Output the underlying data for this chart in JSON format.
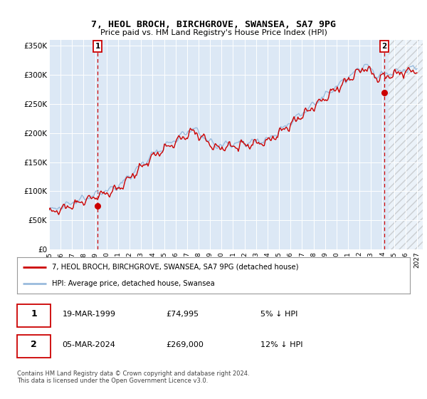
{
  "title": "7, HEOL BROCH, BIRCHGROVE, SWANSEA, SA7 9PG",
  "subtitle": "Price paid vs. HM Land Registry's House Price Index (HPI)",
  "legend_entry1": "7, HEOL BROCH, BIRCHGROVE, SWANSEA, SA7 9PG (detached house)",
  "legend_entry2": "HPI: Average price, detached house, Swansea",
  "annotation1_date": "19-MAR-1999",
  "annotation1_price": "£74,995",
  "annotation1_hpi": "5% ↓ HPI",
  "annotation2_date": "05-MAR-2024",
  "annotation2_price": "£269,000",
  "annotation2_hpi": "12% ↓ HPI",
  "footer": "Contains HM Land Registry data © Crown copyright and database right 2024.\nThis data is licensed under the Open Government Licence v3.0.",
  "color_red": "#cc0000",
  "color_blue": "#99bbdd",
  "bg_color": "#dce8f5",
  "ylim": [
    0,
    360000
  ],
  "xlim_start": 1995.0,
  "xlim_end": 2027.5,
  "point1_x": 1999.21,
  "point1_y": 74995,
  "point2_x": 2024.17,
  "point2_y": 269000
}
